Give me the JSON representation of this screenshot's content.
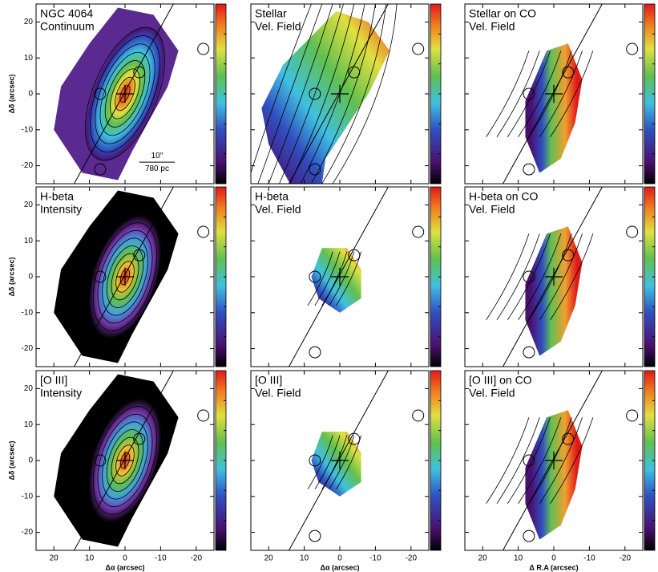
{
  "chart_data": [
    {
      "type": "continuum",
      "title": [
        "NGC 4064",
        "Continuum"
      ],
      "xlim": [
        25,
        -25
      ],
      "ylim": [
        -25,
        25
      ],
      "xticks": [
        20,
        10,
        0,
        -10,
        -20
      ],
      "yticks": [
        -20,
        -10,
        0,
        10,
        20
      ],
      "ylabel": "Δδ (arcsec)",
      "ytick_labels": true,
      "scale_bar": [
        "10″",
        "780 pc"
      ]
    },
    {
      "type": "velocity",
      "title": [
        "Stellar",
        "Vel. Field"
      ],
      "xlim": [
        25,
        -25
      ],
      "ylim": [
        -25,
        25
      ],
      "xticks": [
        20,
        10,
        0,
        -10,
        -20
      ],
      "yticks": [
        -20,
        -10,
        0,
        10,
        20
      ]
    },
    {
      "type": "velocity-co",
      "title": [
        "Stellar on CO",
        "Vel. Field"
      ],
      "xlim": [
        25,
        -25
      ],
      "ylim": [
        -25,
        25
      ],
      "xticks": [
        20,
        10,
        0,
        -10,
        -20
      ],
      "yticks": [
        -20,
        -10,
        0,
        10,
        20
      ]
    },
    {
      "type": "intensity",
      "title": [
        "H-beta",
        "Intensity"
      ],
      "xlim": [
        25,
        -25
      ],
      "ylim": [
        -25,
        25
      ],
      "xticks": [
        20,
        10,
        0,
        -10,
        -20
      ],
      "yticks": [
        -20,
        -10,
        0,
        10,
        20
      ],
      "ylabel": "Δδ (arcsec)",
      "ytick_labels": true
    },
    {
      "type": "velocity-small",
      "title": [
        "H-beta",
        "Vel. Field"
      ],
      "xlim": [
        25,
        -25
      ],
      "ylim": [
        -25,
        25
      ],
      "xticks": [
        20,
        10,
        0,
        -10,
        -20
      ],
      "yticks": [
        -20,
        -10,
        0,
        10,
        20
      ]
    },
    {
      "type": "velocity-co",
      "title": [
        "H-beta on CO",
        "Vel. Field"
      ],
      "xlim": [
        25,
        -25
      ],
      "ylim": [
        -25,
        25
      ],
      "xticks": [
        20,
        10,
        0,
        -10,
        -20
      ],
      "yticks": [
        -20,
        -10,
        0,
        10,
        20
      ]
    },
    {
      "type": "intensity",
      "title": [
        "[O III]",
        "Intensity"
      ],
      "xlim": [
        25,
        -25
      ],
      "ylim": [
        -25,
        25
      ],
      "xticks": [
        20,
        10,
        0,
        -10,
        -20
      ],
      "yticks": [
        -20,
        -10,
        0,
        10,
        20
      ],
      "xlabel": "Δα (arcsec)",
      "ylabel": "Δδ (arcsec)",
      "xtick_labels": true,
      "ytick_labels": true
    },
    {
      "type": "velocity-small",
      "title": [
        "[O III]",
        "Vel. Field"
      ],
      "xlim": [
        25,
        -25
      ],
      "ylim": [
        -25,
        25
      ],
      "xticks": [
        20,
        10,
        0,
        -10,
        -20
      ],
      "yticks": [
        -20,
        -10,
        0,
        10,
        20
      ],
      "xlabel": "Δα (arcsec)",
      "xtick_labels": true
    },
    {
      "type": "velocity-co",
      "title": [
        "[O III] on CO",
        "Vel. Field"
      ],
      "xlim": [
        25,
        -25
      ],
      "ylim": [
        -25,
        25
      ],
      "xticks": [
        20,
        10,
        0,
        -10,
        -20
      ],
      "yticks": [
        -20,
        -10,
        0,
        10,
        20
      ],
      "xlabel": "Δ R.A (arcsec)",
      "xtick_labels": true
    }
  ]
}
